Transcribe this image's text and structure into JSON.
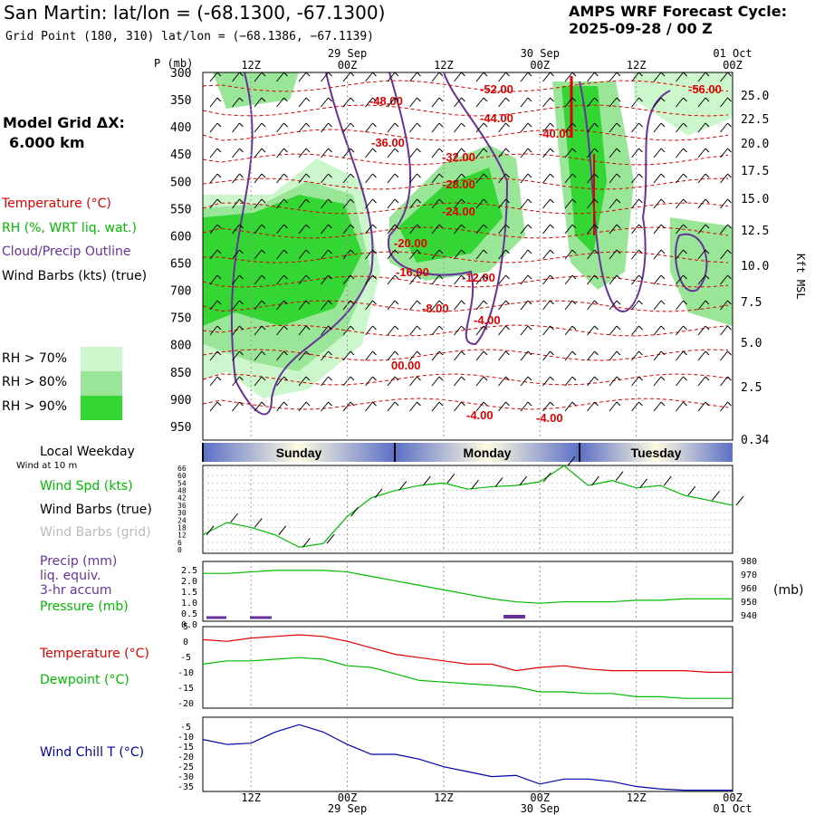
{
  "header": {
    "title": "San Martin:  lat/lon = (-68.1300, -67.1300)",
    "subtitle": "Grid Point (180, 310) lat/lon = (−68.1386, −67.1139)",
    "cycle_line1": "AMPS WRF Forecast Cycle:",
    "cycle_line2": "2025-09-28 / 00  Z",
    "grid_line1": "Model Grid ΔX:",
    "grid_line2": "6.000 km"
  },
  "legend": {
    "temperature": "Temperature (°C)",
    "rh": "RH (%, WRT liq. wat.)",
    "cloud": "Cloud/Precip Outline",
    "wind": "Wind Barbs (kts) (true)",
    "rh70": "RH > 70%",
    "rh80": "RH > 80%",
    "rh90": "RH > 90%",
    "local_weekday": "Local Weekday",
    "wind10": "Wind at 10 m",
    "wspd": "Wind Spd (kts)",
    "wbarb_true": "Wind Barbs (true)",
    "wbarb_grid": "Wind Barbs (grid)",
    "precip1": "Precip (mm)",
    "precip2": "liq. equiv.",
    "precip3": "3-hr accum",
    "pressure": "Pressure (mb)",
    "pressure_unit": "(mb)",
    "temp": "Temperature (°C)",
    "dewpoint": "Dewpoint (°C)",
    "windchill": "Wind Chill T (°C)"
  },
  "colors": {
    "temperature": "#e00000",
    "rh70": "#ccf7cc",
    "rh80": "#99e699",
    "rh90": "#33d633",
    "cloud": "#663399",
    "green": "#00bb00",
    "blue": "#0000aa",
    "grid": "#999999"
  },
  "axes": {
    "p_unit": "P (mb)",
    "kft_label": "Kft MSL",
    "pressure_levels": [
      "300",
      "350",
      "400",
      "450",
      "500",
      "550",
      "600",
      "650",
      "700",
      "750",
      "800",
      "850",
      "900",
      "950"
    ],
    "kft_ticks": [
      "25.0",
      "22.5",
      "20.0",
      "17.5",
      "15.0",
      "12.5",
      "10.0",
      "7.5",
      "5.0",
      "2.5",
      "0.34"
    ],
    "time_ticks": [
      "12Z",
      "00Z",
      "12Z",
      "00Z",
      "12Z",
      "00Z"
    ],
    "date_labels": [
      "29 Sep",
      "30 Sep",
      "01 Oct"
    ],
    "weekdays": [
      "Sunday",
      "Monday",
      "Tuesday"
    ],
    "wspd_ticks": [
      "66",
      "60",
      "54",
      "48",
      "42",
      "36",
      "30",
      "24",
      "18",
      "12",
      "6",
      "0"
    ],
    "precip_ticks": [
      "2.5",
      "2.0",
      "1.5",
      "1.0",
      "0.5",
      "0.0"
    ],
    "pressure_ticks": [
      "980",
      "970",
      "960",
      "950",
      "940"
    ],
    "temp_ticks": [
      "5",
      "0",
      "-5",
      "-10",
      "-15",
      "-20"
    ],
    "windchill_ticks": [
      "-5",
      "-10",
      "-15",
      "-20",
      "-25",
      "-30",
      "-35"
    ]
  },
  "chart_data": [
    {
      "type": "heatmap",
      "title": "Time-height cross section",
      "contour_labels": [
        "-48.00",
        "-52.00",
        "-44.00",
        "-56.00",
        "-36.00",
        "-40.00",
        "-32.00",
        "-28.00",
        "-24.00",
        "-20.00",
        "-16.00",
        "-12.00",
        "-8.00",
        "-4.00",
        "00.00",
        "-4.00",
        "-4.00"
      ]
    },
    {
      "type": "line",
      "xlabel": "",
      "ylabel": "Wind Spd (kts)",
      "ylim": [
        0,
        66
      ],
      "x": [
        "06Z",
        "09Z",
        "12Z",
        "15Z",
        "18Z",
        "21Z",
        "00Z",
        "03Z",
        "06Z",
        "09Z",
        "12Z",
        "15Z",
        "18Z",
        "21Z",
        "00Z",
        "03Z",
        "06Z",
        "09Z",
        "12Z",
        "15Z",
        "18Z",
        "21Z",
        "00Z"
      ],
      "series": [
        {
          "name": "Wind Spd (kts)",
          "values": [
            12,
            22,
            18,
            12,
            2,
            5,
            27,
            42,
            48,
            52,
            54,
            49,
            51,
            52,
            55,
            68,
            52,
            56,
            50,
            52,
            44,
            40,
            36
          ]
        }
      ]
    },
    {
      "type": "line",
      "ylim_precip": [
        0,
        2.5
      ],
      "ylim_pressure": [
        940,
        980
      ],
      "series": [
        {
          "name": "Pressure (mb)",
          "values": [
            972,
            972,
            973,
            974,
            974,
            974,
            973,
            970,
            967,
            964,
            961,
            958,
            955,
            953,
            952,
            953,
            953,
            953,
            954,
            954,
            955,
            955,
            955
          ]
        },
        {
          "name": "Precip (mm)",
          "values": [
            0.0,
            0.0,
            0.0,
            0.0,
            0.0,
            0.0,
            0.0,
            0.0,
            0.0,
            0.0,
            0.0,
            0.0,
            0.02,
            0.0,
            0.0,
            0.0,
            0.0,
            0.0,
            0.0,
            0.0,
            0.0,
            0.0,
            0.0
          ]
        }
      ]
    },
    {
      "type": "line",
      "ylim": [
        -20,
        5
      ],
      "series": [
        {
          "name": "Temperature (°C)",
          "values": [
            1,
            0.5,
            1.5,
            2,
            2.5,
            2,
            0.5,
            -1.5,
            -3.5,
            -4.5,
            -5.5,
            -6.5,
            -6.5,
            -8.5,
            -7.5,
            -7,
            -8,
            -8.5,
            -8.5,
            -8.5,
            -8.5,
            -9,
            -9
          ]
        },
        {
          "name": "Dewpoint (°C)",
          "values": [
            -6.5,
            -5.5,
            -5.5,
            -5,
            -4.5,
            -5,
            -7,
            -7.5,
            -9.5,
            -11.5,
            -12,
            -12.5,
            -13,
            -13.5,
            -15,
            -15,
            -15.5,
            -15.5,
            -16.5,
            -16.5,
            -17,
            -17,
            -17
          ]
        }
      ]
    },
    {
      "type": "line",
      "ylim": [
        -35,
        -5
      ],
      "series": [
        {
          "name": "Wind Chill T (°C)",
          "values": [
            -14,
            -16,
            -15.5,
            -11,
            -8,
            -11,
            -16,
            -20,
            -20,
            -22,
            -25,
            -27,
            -29,
            -28.5,
            -32,
            -30,
            -30,
            -31,
            -33,
            -34,
            -34.5,
            -34.5,
            -34.5
          ]
        }
      ]
    }
  ]
}
